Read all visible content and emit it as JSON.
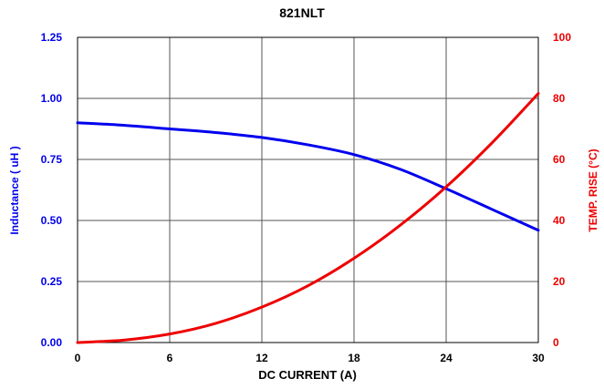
{
  "chart_data": {
    "type": "line",
    "title": "821NLT",
    "xlabel": "DC CURRENT (A)",
    "ylabel_left": "Inductance  ( uH )",
    "ylabel_right": "TEMP. RISE (°C)",
    "xlim": [
      0,
      30
    ],
    "ylim_left": [
      0,
      1.25
    ],
    "ylim_right": [
      0,
      100
    ],
    "x_ticks": [
      0,
      6,
      12,
      18,
      24,
      30
    ],
    "x_tick_labels": [
      "0",
      "6",
      "12",
      "18",
      "24",
      "30"
    ],
    "left_ticks": [
      0,
      0.25,
      0.5,
      0.75,
      1.0,
      1.25
    ],
    "left_tick_labels": [
      "0.00",
      "0.25",
      "0.50",
      "0.75",
      "1.00",
      "1.25"
    ],
    "right_ticks": [
      0,
      20,
      40,
      60,
      80,
      100
    ],
    "right_tick_labels": [
      "0",
      "20",
      "40",
      "60",
      "80",
      "100"
    ],
    "grid": true,
    "series": [
      {
        "axis": "left",
        "color": "#0000ee",
        "x": [
          0,
          3,
          6,
          9,
          12,
          15,
          18,
          21,
          24,
          27,
          30
        ],
        "values": [
          0.9,
          0.89,
          0.875,
          0.86,
          0.84,
          0.81,
          0.77,
          0.71,
          0.63,
          0.545,
          0.46
        ]
      },
      {
        "axis": "right",
        "color": "#ee0000",
        "x": [
          0,
          3,
          6,
          9,
          12,
          15,
          18,
          21,
          24,
          27,
          30
        ],
        "values": [
          0,
          0.8,
          2.8,
          6.3,
          11.6,
          18.6,
          27.6,
          38.4,
          51.0,
          65.5,
          81.6
        ]
      }
    ]
  }
}
